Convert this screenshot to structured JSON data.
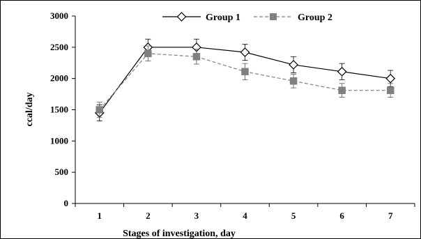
{
  "chart_data": {
    "type": "line",
    "xlabel": "Stages of investigation, day",
    "ylabel": "ccal/day",
    "categories": [
      "1",
      "2",
      "3",
      "4",
      "5",
      "6",
      "7"
    ],
    "ylim": [
      0,
      3000
    ],
    "yticks": [
      0,
      500,
      1000,
      1500,
      2000,
      2500,
      3000
    ],
    "yticklabels": [
      "0",
      "500",
      "1000",
      "1500",
      "2000",
      "2500",
      "3000"
    ],
    "grid": false,
    "legend_position": "top",
    "series": [
      {
        "name": "Group 1",
        "values": [
          1450,
          2500,
          2500,
          2420,
          2220,
          2110,
          2000
        ],
        "errors": [
          130,
          130,
          130,
          130,
          130,
          130,
          130
        ],
        "marker": "diamond-open",
        "line_style": "solid",
        "color": "#000000"
      },
      {
        "name": "Group 2",
        "values": [
          1500,
          2400,
          2350,
          2110,
          1960,
          1810,
          1810
        ],
        "errors": [
          120,
          120,
          120,
          130,
          110,
          110,
          110
        ],
        "marker": "square",
        "line_style": "dashed",
        "color": "#808080"
      }
    ]
  }
}
